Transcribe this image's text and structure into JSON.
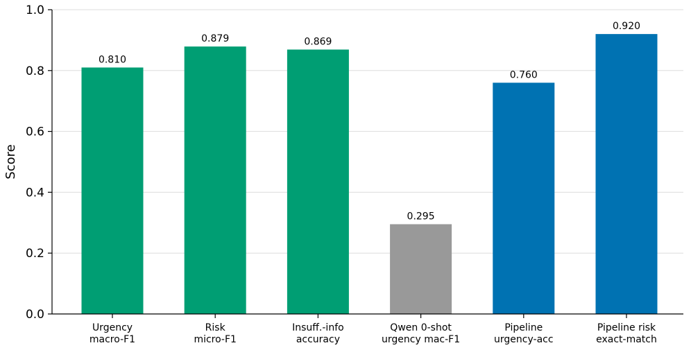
{
  "chart_data": {
    "type": "bar",
    "title": "",
    "xlabel": "",
    "ylabel": "Score",
    "ylim": [
      0,
      1.0
    ],
    "yticks": [
      "0.0",
      "0.2",
      "0.4",
      "0.6",
      "0.8",
      "1.0"
    ],
    "grid": "horizontal",
    "categories": [
      [
        "Urgency",
        "macro-F1"
      ],
      [
        "Risk",
        "micro-F1"
      ],
      [
        "Insuff.-info",
        "accuracy"
      ],
      [
        "Qwen 0-shot",
        "urgency mac-F1"
      ],
      [
        "Pipeline",
        "urgency-acc"
      ],
      [
        "Pipeline risk",
        "exact-match"
      ]
    ],
    "values": [
      0.81,
      0.879,
      0.869,
      0.295,
      0.76,
      0.92
    ],
    "value_labels": [
      "0.810",
      "0.879",
      "0.869",
      "0.295",
      "0.760",
      "0.920"
    ],
    "colors": [
      "#009e73",
      "#009e73",
      "#009e73",
      "#999999",
      "#0072b2",
      "#0072b2"
    ]
  }
}
